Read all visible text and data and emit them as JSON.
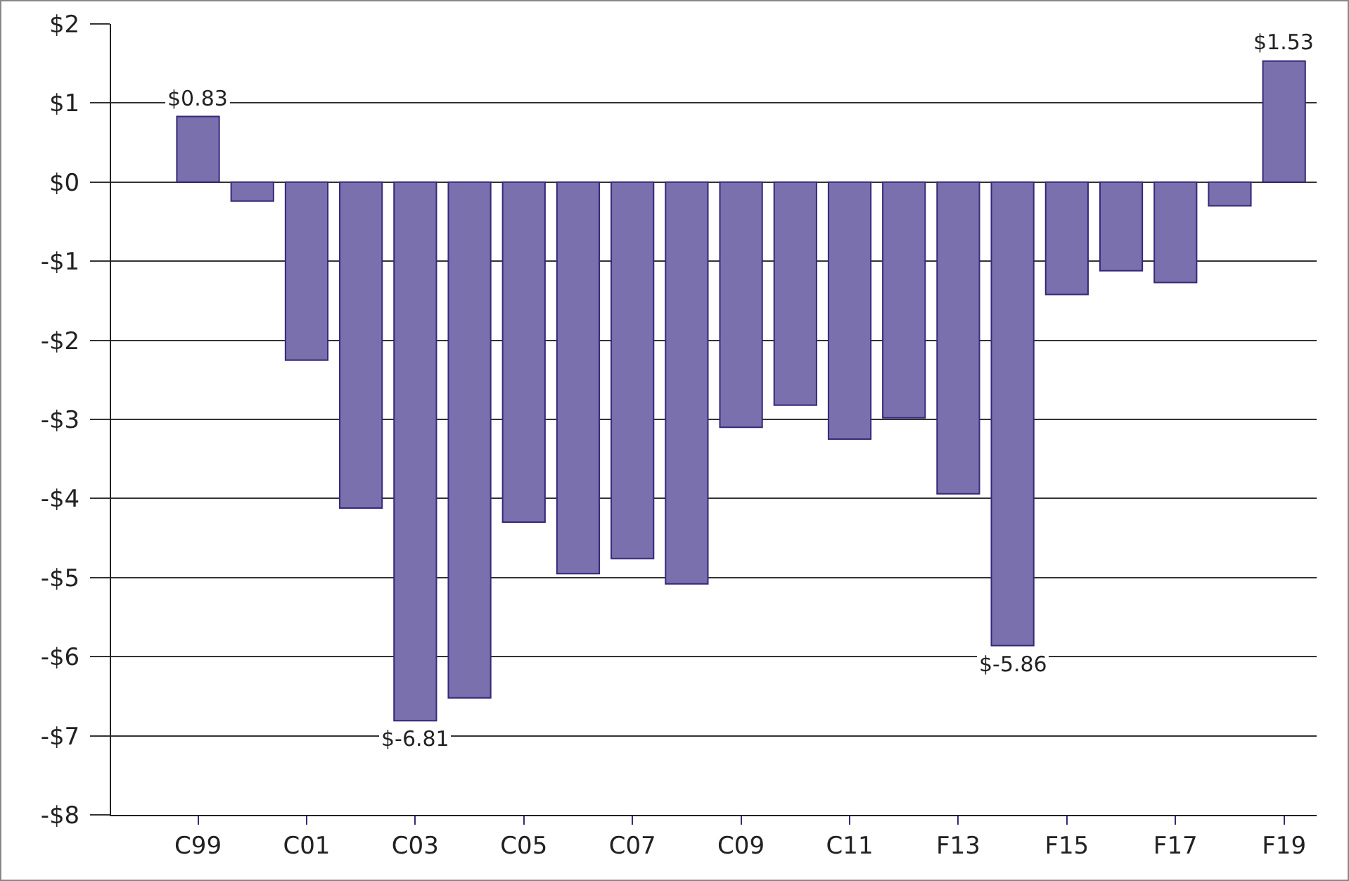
{
  "chart_data": {
    "type": "bar",
    "categories": [
      "C99",
      null,
      "C01",
      null,
      "C03",
      null,
      "C05",
      null,
      "C07",
      null,
      "C09",
      null,
      "C11",
      null,
      "F13",
      null,
      "F15",
      null,
      "F17",
      null,
      "F19"
    ],
    "values": [
      0.83,
      -0.24,
      -2.25,
      -4.12,
      -6.81,
      -6.52,
      -4.3,
      -4.95,
      -4.76,
      -5.08,
      -3.1,
      -2.82,
      -3.25,
      -2.98,
      -3.94,
      -5.86,
      -1.42,
      -1.12,
      -1.27,
      -0.3,
      1.53
    ],
    "value_labels": [
      "$0.83",
      null,
      null,
      null,
      "$-6.81",
      null,
      null,
      null,
      null,
      null,
      null,
      null,
      null,
      null,
      null,
      "$-5.86",
      null,
      null,
      null,
      null,
      "$1.53"
    ],
    "color": "#7a70ad",
    "ylim": [
      -8,
      2
    ],
    "yticks": [
      {
        "value": 2,
        "label": "$2"
      },
      {
        "value": 1,
        "label": "$1"
      },
      {
        "value": 0,
        "label": "$0"
      },
      {
        "value": -1,
        "label": "-$1"
      },
      {
        "value": -2,
        "label": "-$2"
      },
      {
        "value": -3,
        "label": "-$3"
      },
      {
        "value": -4,
        "label": "-$4"
      },
      {
        "value": -5,
        "label": "-$5"
      },
      {
        "value": -6,
        "label": "-$6"
      },
      {
        "value": -7,
        "label": "-$7"
      },
      {
        "value": -8,
        "label": "-$8"
      }
    ],
    "grid": "y",
    "legend": false
  }
}
